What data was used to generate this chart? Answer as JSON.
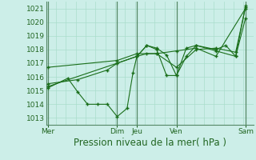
{
  "background_color": "#cceee8",
  "grid_color": "#aaddcc",
  "line_color": "#1a6e1a",
  "marker_color": "#1a6e1a",
  "title": "Pression niveau de la mer( hPa )",
  "ylim": [
    1012.5,
    1021.5
  ],
  "yticks": [
    1013,
    1014,
    1015,
    1016,
    1017,
    1018,
    1019,
    1020,
    1021
  ],
  "x_day_labels": [
    "Mer",
    "Dim",
    "Jeu",
    "Ven",
    "Sam"
  ],
  "x_day_positions": [
    0,
    35,
    45,
    65,
    100
  ],
  "vline_positions": [
    0,
    35,
    45,
    65,
    100
  ],
  "xlim": [
    -1,
    104
  ],
  "series": [
    [
      0,
      1015.5,
      15,
      1015.8,
      30,
      1016.5,
      35,
      1017.0,
      45,
      1017.5,
      50,
      1018.3,
      55,
      1018.1,
      60,
      1017.6,
      65,
      1016.1,
      70,
      1018.1,
      75,
      1018.3,
      85,
      1018.0,
      90,
      1018.3,
      95,
      1017.5,
      100,
      1021.2
    ],
    [
      0,
      1015.2,
      10,
      1015.9,
      15,
      1014.9,
      20,
      1014.0,
      25,
      1014.0,
      30,
      1014.0,
      35,
      1013.1,
      40,
      1013.7,
      43,
      1016.3,
      45,
      1017.5,
      50,
      1018.3,
      55,
      1018.0,
      60,
      1016.1,
      65,
      1016.1,
      70,
      1017.5,
      75,
      1018.3,
      85,
      1017.9,
      95,
      1017.5,
      100,
      1020.3
    ],
    [
      0,
      1015.3,
      35,
      1017.0,
      45,
      1017.5,
      50,
      1017.7,
      55,
      1017.7,
      65,
      1016.7,
      75,
      1018.0,
      85,
      1018.1,
      95,
      1017.8,
      100,
      1021.1
    ],
    [
      0,
      1016.7,
      35,
      1017.2,
      45,
      1017.7,
      55,
      1017.7,
      65,
      1017.9,
      75,
      1018.1,
      85,
      1017.5,
      100,
      1021.0
    ]
  ],
  "title_color": "#1a6e1a",
  "title_fontsize": 8.5,
  "tick_fontsize": 6.5,
  "xlabel_color": "#226622"
}
